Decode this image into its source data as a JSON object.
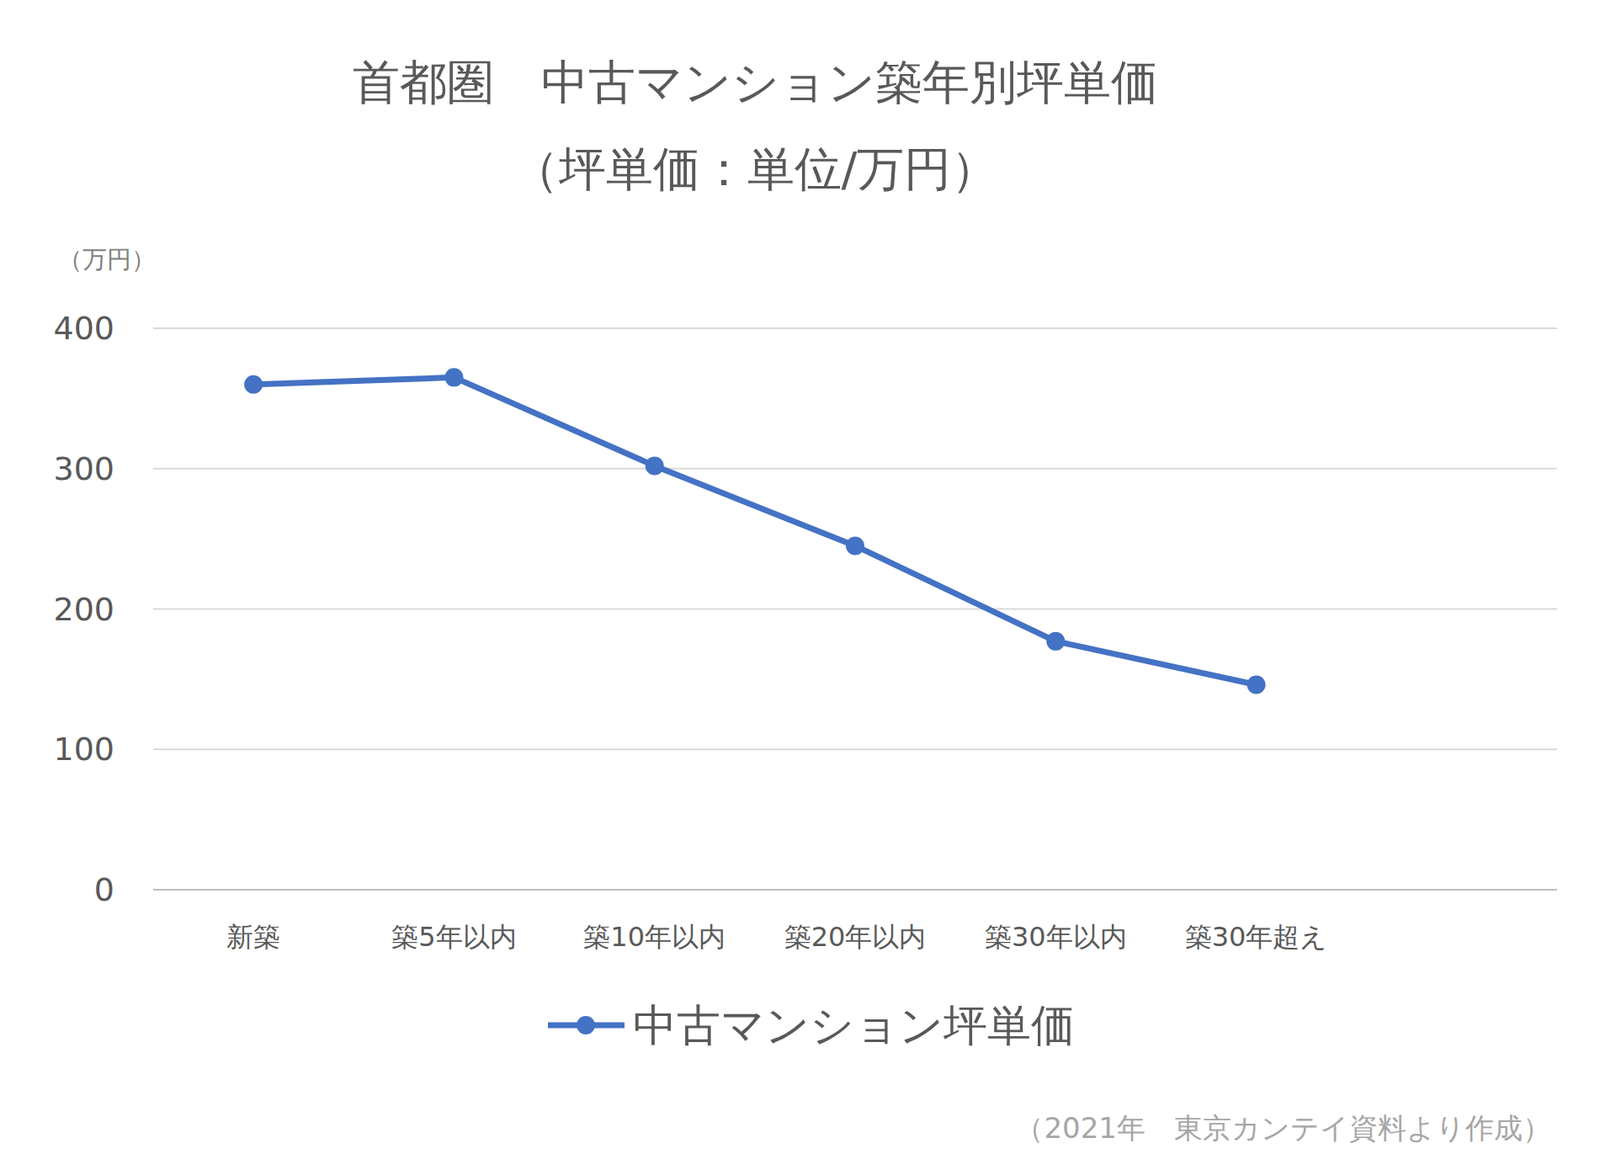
{
  "chart_data": {
    "type": "line",
    "title": "首都圏　中古マンション築年別坪単価",
    "subtitle": "（坪単価：単位/万円）",
    "y_label": "（万円）",
    "annotations": [
      "（2021年　東京カンテイ資料より作成）"
    ],
    "categories": [
      "新築",
      "築5年以内",
      "築10年以内",
      "築20年以内",
      "築30年以内",
      "築30年超え",
      null
    ],
    "series": [
      {
        "name": "中古マンション坪単価",
        "color": "#4472c4",
        "marker": "circle",
        "line_style": "solid",
        "values": [
          360,
          365,
          302,
          245,
          177,
          146,
          null
        ]
      }
    ],
    "ylim": [
      0,
      400
    ],
    "yticks": [
      0,
      100,
      200,
      300,
      400
    ],
    "grid": true,
    "legend": "bottom"
  }
}
